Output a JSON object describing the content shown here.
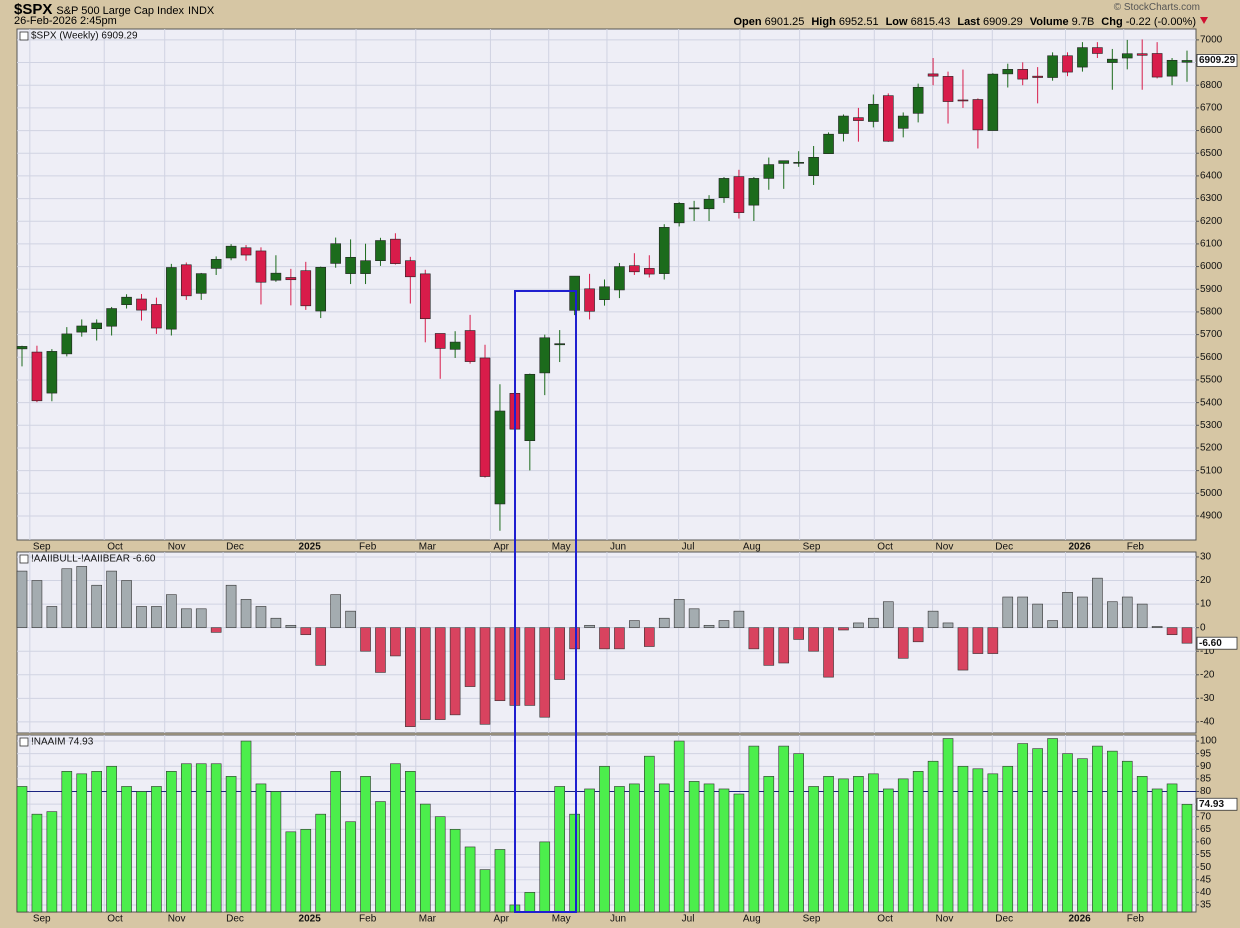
{
  "header": {
    "symbol": "$SPX",
    "name": "S&P 500 Large Cap Index",
    "exchange": "INDX",
    "date": "26-Feb-2026 2:45pm",
    "credit": "© StockCharts.com",
    "quote": [
      {
        "label": "Open",
        "value": "6901.25"
      },
      {
        "label": "High",
        "value": "6952.51"
      },
      {
        "label": "Low",
        "value": "6815.43"
      },
      {
        "label": "Last",
        "value": "6909.29"
      },
      {
        "label": "Volume",
        "value": "9.7B"
      },
      {
        "label": "Chg",
        "value": "-0.22 (-0.00%)"
      }
    ]
  },
  "chart_data": [
    {
      "type": "candlestick",
      "title": "$SPX (Weekly) 6909.29",
      "up_color": "#1c6b1c",
      "down_color": "#d81c4a",
      "last_value_label": "6909.29",
      "open": [
        5637,
        5623,
        5442,
        5615,
        5711,
        5726,
        5737,
        5832,
        5857,
        5833,
        5724,
        6008,
        5882,
        5992,
        6038,
        6083,
        6069,
        5940,
        5952,
        5982,
        5804,
        6014,
        5969,
        5969,
        6026,
        6121,
        6026,
        5968,
        5705,
        5635,
        5718,
        5597,
        4953,
        5441,
        5232,
        5531,
        5655,
        5807,
        5902,
        5854,
        5897,
        6004,
        5992,
        5969,
        6193,
        6259,
        6255,
        6304,
        6397,
        6271,
        6389,
        6455,
        6457,
        6401,
        6498,
        6587,
        6657,
        6640,
        6754,
        6610,
        6676,
        6850,
        6839,
        6735,
        6737,
        6600,
        6850,
        6870,
        6840,
        6834,
        6930,
        6880,
        6966,
        6900,
        6920,
        6939,
        6940,
        6840,
        6901.25
      ],
      "high": [
        5651,
        5651,
        5636,
        5733,
        5767,
        5767,
        5822,
        5878,
        5879,
        5863,
        6012,
        6018,
        5972,
        6045,
        6099,
        6095,
        6085,
        6050,
        5990,
        6021,
        6000,
        6128,
        6120,
        6101,
        6127,
        6147,
        6043,
        5986,
        5705,
        5715,
        5787,
        5655,
        5481,
        5460,
        5528,
        5700,
        5720,
        5958,
        5968,
        5943,
        6016,
        6059,
        6050,
        6187,
        6284,
        6290,
        6315,
        6395,
        6427,
        6395,
        6481,
        6467,
        6509,
        6532,
        6592,
        6671,
        6700,
        6759,
        6764,
        6680,
        6807,
        6920,
        6860,
        6869,
        6742,
        6853,
        6895,
        6901,
        6880,
        6945,
        6945,
        6990,
        6990,
        6960,
        7000,
        7002,
        6990,
        6920,
        6952.51
      ],
      "low": [
        5560,
        5402,
        5406,
        5604,
        5691,
        5674,
        5696,
        5815,
        5762,
        5703,
        5696,
        5853,
        5853,
        5963,
        6028,
        6026,
        5833,
        5933,
        5829,
        5809,
        5773,
        5995,
        5923,
        5923,
        6003,
        6009,
        5837,
        5666,
        5505,
        5597,
        5572,
        5069,
        4835,
        5262,
        5101,
        5433,
        5579,
        5786,
        5767,
        5828,
        5861,
        5963,
        5952,
        5943,
        6177,
        6201,
        6201,
        6281,
        6212,
        6201,
        6339,
        6343,
        6440,
        6360,
        6497,
        6552,
        6551,
        6614,
        6550,
        6570,
        6636,
        6800,
        6631,
        6700,
        6521,
        6600,
        6790,
        6800,
        6720,
        6820,
        6840,
        6860,
        6920,
        6780,
        6870,
        6780,
        6830,
        6800,
        6815.43
      ],
      "close": [
        5648,
        5408,
        5626,
        5703,
        5738,
        5751,
        5815,
        5865,
        5808,
        5729,
        5996,
        5871,
        5969,
        6032,
        6090,
        6051,
        5931,
        5971,
        5942,
        5827,
        5997,
        6101,
        6041,
        6026,
        6115,
        6013,
        5955,
        5770,
        5639,
        5667,
        5581,
        5074,
        5363,
        5283,
        5525,
        5686,
        5660,
        5958,
        5803,
        5911,
        6000,
        5977,
        5967,
        6173,
        6279,
        6259,
        6297,
        6389,
        6238,
        6389,
        6450,
        6467,
        6460,
        6482,
        6584,
        6664,
        6644,
        6716,
        6553,
        6664,
        6791,
        6840,
        6728,
        6734,
        6603,
        6849,
        6870,
        6827,
        6834,
        6930,
        6858,
        6966,
        6940,
        6915,
        6939,
        6932,
        6836,
        6910,
        6909.29
      ],
      "ylim": [
        4794,
        7048
      ],
      "yticks": [
        4900,
        5000,
        5100,
        5200,
        5300,
        5400,
        5500,
        5600,
        5700,
        5800,
        5900,
        6000,
        6100,
        6200,
        6300,
        6400,
        6500,
        6600,
        6700,
        6800,
        6900,
        7000
      ],
      "xticks": [
        {
          "value": 1.06,
          "label": "Sep"
        },
        {
          "value": 6.04,
          "label": "Oct"
        },
        {
          "value": 10.09,
          "label": "Nov"
        },
        {
          "value": 14.0,
          "label": "Dec"
        },
        {
          "value": 18.85,
          "label": "2025"
        },
        {
          "value": 22.9,
          "label": "Feb"
        },
        {
          "value": 26.9,
          "label": "Mar"
        },
        {
          "value": 31.9,
          "label": "Apr"
        },
        {
          "value": 35.8,
          "label": "May"
        },
        {
          "value": 39.7,
          "label": "Jun"
        },
        {
          "value": 44.5,
          "label": "Jul"
        },
        {
          "value": 48.6,
          "label": "Aug"
        },
        {
          "value": 52.6,
          "label": "Sep"
        },
        {
          "value": 57.6,
          "label": "Oct"
        },
        {
          "value": 61.5,
          "label": "Nov"
        },
        {
          "value": 65.5,
          "label": "Dec"
        },
        {
          "value": 70.4,
          "label": "2026"
        },
        {
          "value": 74.3,
          "label": "Feb"
        }
      ],
      "grid": true
    },
    {
      "type": "bar",
      "title": "!AAIIBULL-!AAIIBEAR -6.60",
      "color": "#a4acb0",
      "negative_color": "#d8435f",
      "last_value_label": "-6.60",
      "values": [
        24,
        20,
        9,
        25,
        26,
        18,
        24,
        20,
        9,
        9,
        14,
        8,
        8,
        -2,
        18,
        12,
        9,
        4,
        1,
        -3,
        -16,
        14,
        7,
        -10,
        -19,
        -12,
        -42,
        -39,
        -39,
        -37,
        -25,
        -41,
        -31,
        -33,
        -33,
        -38,
        -22,
        -9,
        1,
        -9,
        -9,
        3,
        -8,
        4,
        12,
        8,
        1,
        3,
        7,
        -9,
        -16,
        -15,
        -5,
        -10,
        -21,
        -1,
        2,
        4,
        11,
        -13,
        -6,
        7,
        2,
        -18,
        -11,
        -11,
        13,
        13,
        10,
        3,
        15,
        13,
        21,
        11,
        13,
        10,
        0.5,
        -3,
        -6.6
      ],
      "ylim": [
        -44.7,
        32.1
      ],
      "yticks": [
        -40,
        -30,
        -20,
        -10,
        0,
        10,
        20,
        30
      ],
      "grid": true
    },
    {
      "type": "bar",
      "title": "!NAAIM 74.93",
      "color": "#4cee4c",
      "negative_color": "#4cee4c",
      "last_value_label": "74.93",
      "hline": 80,
      "hline_color": "#1a2380",
      "values": [
        82,
        71,
        72,
        88,
        87,
        88,
        90,
        82,
        80,
        82,
        88,
        91,
        91,
        91,
        86,
        100,
        83,
        80,
        64,
        65,
        71,
        88,
        68,
        86,
        76,
        91,
        88,
        75,
        70,
        65,
        58,
        49,
        57,
        35,
        40,
        60,
        82,
        71,
        81,
        90,
        82,
        83,
        94,
        83,
        100,
        84,
        83,
        81,
        79,
        98,
        86,
        98,
        95,
        82,
        86,
        85,
        86,
        87,
        81,
        85,
        88,
        92,
        101,
        90,
        89,
        87,
        90,
        99,
        97,
        101,
        95,
        93,
        98,
        96,
        92,
        86,
        81,
        83,
        74.93
      ],
      "ylim": [
        32.2,
        102.4
      ],
      "yticks": [
        35,
        40,
        45,
        50,
        55,
        60,
        65,
        70,
        75,
        80,
        85,
        90,
        95,
        100
      ],
      "xticks": [
        {
          "value": 1.06,
          "label": "Sep"
        },
        {
          "value": 6.04,
          "label": "Oct"
        },
        {
          "value": 10.09,
          "label": "Nov"
        },
        {
          "value": 14.0,
          "label": "Dec"
        },
        {
          "value": 18.85,
          "label": "2025"
        },
        {
          "value": 22.9,
          "label": "Feb"
        },
        {
          "value": 26.9,
          "label": "Mar"
        },
        {
          "value": 31.9,
          "label": "Apr"
        },
        {
          "value": 35.8,
          "label": "May"
        },
        {
          "value": 39.7,
          "label": "Jun"
        },
        {
          "value": 44.5,
          "label": "Jul"
        },
        {
          "value": 48.6,
          "label": "Aug"
        },
        {
          "value": 52.6,
          "label": "Sep"
        },
        {
          "value": 57.6,
          "label": "Oct"
        },
        {
          "value": 61.5,
          "label": "Nov"
        },
        {
          "value": 65.5,
          "label": "Dec"
        },
        {
          "value": 70.4,
          "label": "2026"
        },
        {
          "value": 74.3,
          "label": "Feb"
        }
      ],
      "grid": true
    }
  ]
}
